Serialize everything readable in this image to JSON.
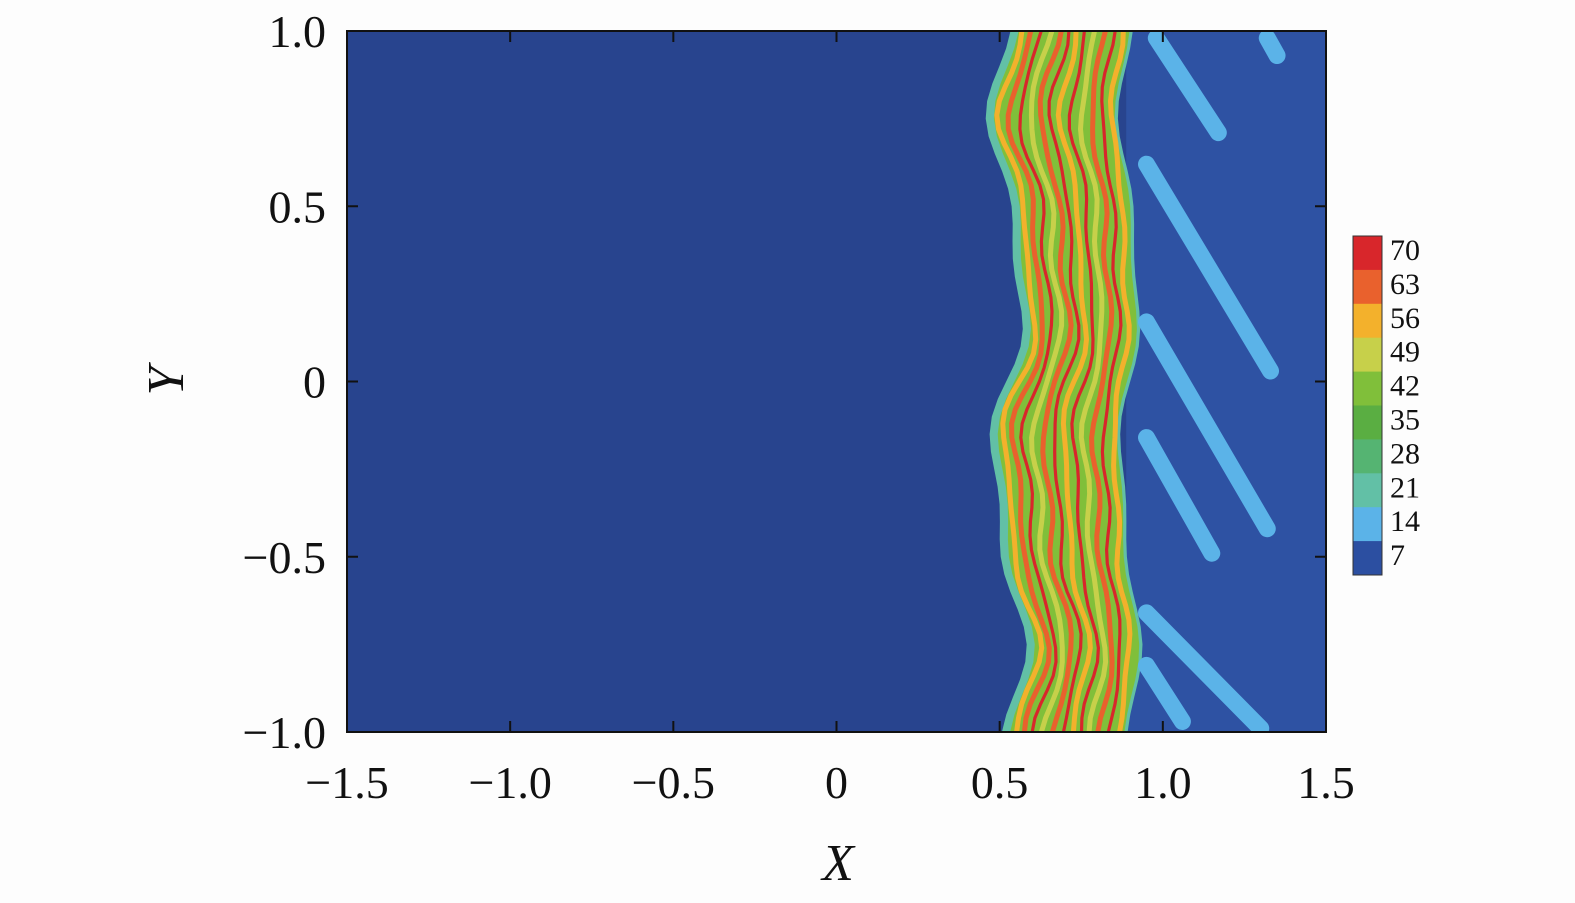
{
  "chart_data": {
    "type": "heatmap",
    "subtype": "filled-contour",
    "title": "",
    "xlabel": "X",
    "ylabel": "Y",
    "xlim": [
      -1.5,
      1.5
    ],
    "ylim": [
      -1.0,
      1.0
    ],
    "x_ticks": [
      -1.5,
      -1.0,
      -0.5,
      0,
      0.5,
      1.0,
      1.5
    ],
    "x_tick_labels": [
      "−1.5",
      "−1.0",
      "−0.5",
      "0",
      "0.5",
      "1.0",
      "1.5"
    ],
    "y_ticks": [
      1.0,
      0.5,
      0,
      -0.5,
      -1.0
    ],
    "y_tick_labels": [
      "1.0",
      "0.5",
      "0",
      "−0.5",
      "−1.0"
    ],
    "grid": false,
    "legend": "colorbar at right",
    "colorbar": {
      "levels": [
        70,
        63,
        56,
        49,
        42,
        35,
        28,
        21,
        14,
        7
      ],
      "labels": [
        "70",
        "63",
        "56",
        "49",
        "42",
        "35",
        "28",
        "21",
        "14",
        "7"
      ],
      "colors": [
        "#d8262b",
        "#e9612d",
        "#f3b12c",
        "#c7d04a",
        "#80bf3a",
        "#5aae42",
        "#55b472",
        "#62c0a6",
        "#5bb3e8",
        "#2c4fa1"
      ]
    },
    "field": {
      "background_value": 7,
      "background_color": "#28448e",
      "front_band": {
        "x_start": 0.52,
        "x_end": 0.9,
        "peak_value": 70,
        "stripe_count": 6
      },
      "post_front_value": 14,
      "post_front_color": "#2e52a3",
      "streak_value": 21,
      "streak_color": "#5bb3e8",
      "streaks": [
        {
          "x0": 0.98,
          "y0": 0.98,
          "x1": 1.17,
          "y1": 0.71
        },
        {
          "x0": 0.95,
          "y0": 0.62,
          "x1": 1.33,
          "y1": 0.03
        },
        {
          "x0": 0.95,
          "y0": 0.17,
          "x1": 1.32,
          "y1": -0.42
        },
        {
          "x0": 0.95,
          "y0": -0.16,
          "x1": 1.15,
          "y1": -0.49
        },
        {
          "x0": 0.95,
          "y0": -0.66,
          "x1": 1.3,
          "y1": -0.99
        },
        {
          "x0": 0.95,
          "y0": -0.81,
          "x1": 1.06,
          "y1": -0.97
        },
        {
          "x0": 1.32,
          "y0": 0.98,
          "x1": 1.35,
          "y1": 0.93
        }
      ]
    }
  }
}
